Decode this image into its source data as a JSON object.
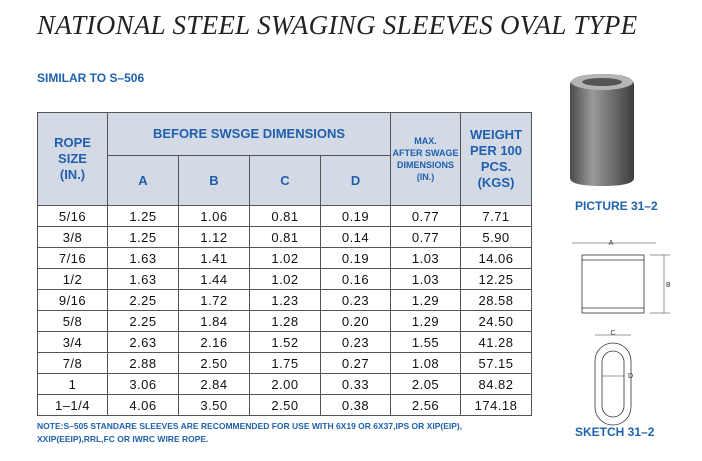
{
  "title": "NATIONAL STEEL SWAGING SLEEVES OVAL TYPE",
  "subtitle": "SIMILAR TO S–506",
  "table": {
    "header": {
      "rope": [
        "ROPE",
        "SIZE",
        "(IN.)"
      ],
      "group": "BEFORE SWSGE DIMENSIONS",
      "dims": [
        "A",
        "B",
        "C",
        "D"
      ],
      "max": [
        "MAX.",
        "AFTER SWAGE",
        "DIMENSIONS",
        "(IN.)"
      ],
      "weight": [
        "WEIGHT",
        "PER 100",
        "PCS.",
        "(KGS)"
      ]
    },
    "rows": [
      [
        "5/16",
        "1.25",
        "1.06",
        "0.81",
        "0.19",
        "0.77",
        "7.71"
      ],
      [
        "3/8",
        "1.25",
        "1.12",
        "0.81",
        "0.14",
        "0.77",
        "5.90"
      ],
      [
        "7/16",
        "1.63",
        "1.41",
        "1.02",
        "0.19",
        "1.03",
        "14.06"
      ],
      [
        "1/2",
        "1.63",
        "1.44",
        "1.02",
        "0.16",
        "1.03",
        "12.25"
      ],
      [
        "9/16",
        "2.25",
        "1.72",
        "1.23",
        "0.23",
        "1.29",
        "28.58"
      ],
      [
        "5/8",
        "2.25",
        "1.84",
        "1.28",
        "0.20",
        "1.29",
        "24.50"
      ],
      [
        "3/4",
        "2.63",
        "2.16",
        "1.52",
        "0.23",
        "1.55",
        "41.28"
      ],
      [
        "7/8",
        "2.88",
        "2.50",
        "1.75",
        "0.27",
        "1.08",
        "57.15"
      ],
      [
        "1",
        "3.06",
        "2.84",
        "2.00",
        "0.33",
        "2.05",
        "84.82"
      ],
      [
        "1–1/4",
        "4.06",
        "3.50",
        "2.50",
        "0.38",
        "2.56",
        "174.18"
      ]
    ]
  },
  "note": [
    "NOTE:S–505 STANDARE SLEEVES ARE RECOMMENDED FOR USE WITH 6X19 OR 6X37,IPS OR XIP(EIP),",
    "XXIP(EEIP),RRL,FC OR IWRC WIRE ROPE."
  ],
  "picture_caption": "PICTURE 31–2",
  "sketch_labels": [
    "A",
    "B",
    "C",
    "D"
  ],
  "sketch_caption": "SKETCH 31–2"
}
